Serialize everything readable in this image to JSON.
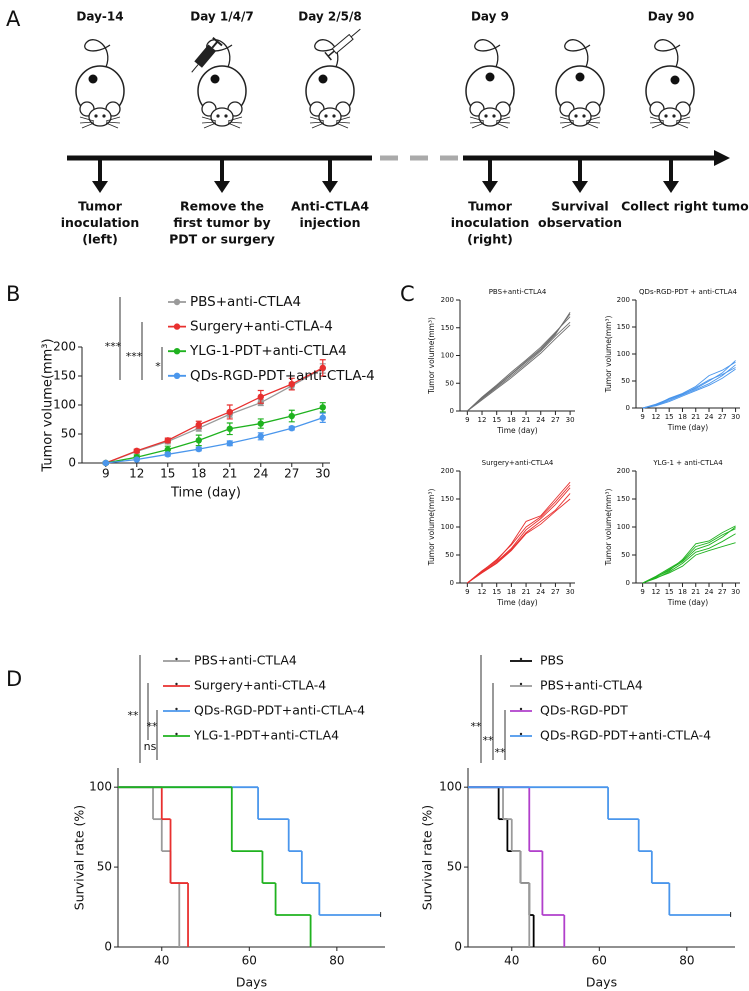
{
  "panel_labels": [
    "A",
    "B",
    "C",
    "D"
  ],
  "timeline": {
    "steps": [
      {
        "day": "Day-14",
        "label": [
          "Tumor",
          "inoculation",
          "(left)"
        ]
      },
      {
        "day": "Day 1/4/7",
        "label": [
          "Remove the",
          "first tumor by",
          "PDT or surgery"
        ]
      },
      {
        "day": "Day 2/5/8",
        "label": [
          "Anti-CTLA4",
          "injection"
        ]
      },
      {
        "day": "Day 9",
        "label": [
          "Tumor",
          "inoculation",
          "(right)"
        ]
      },
      {
        "label": [
          "Survival",
          "observation"
        ]
      },
      {
        "day": "Day 90",
        "label": [
          "Collect right tumor"
        ]
      }
    ]
  },
  "chart_data": [
    {
      "type": "line",
      "x": [
        9,
        12,
        15,
        18,
        21,
        24,
        27,
        30
      ],
      "xlim": [
        6.7,
        30.7
      ],
      "xticks": [
        9,
        12,
        15,
        18,
        21,
        24,
        27,
        30
      ],
      "ylim": [
        0,
        200
      ],
      "yticks": [
        0,
        50,
        100,
        150,
        200
      ],
      "xlabel": "Time (day)",
      "ylabel": "Tumor volume(mm³)",
      "annotations": [
        "***",
        "***",
        "*"
      ],
      "markers": true,
      "series": [
        {
          "name": "PBS+anti-CTLA4",
          "color": "#9a9a9a",
          "values": [
            0,
            20,
            37,
            60,
            84,
            104,
            133,
            163
          ],
          "errors": [
            2,
            3,
            4,
            5,
            5,
            5,
            6,
            8
          ]
        },
        {
          "name": "Surgery+anti-CTLA-4",
          "color": "#e8302f",
          "values": [
            0,
            21,
            39,
            66,
            88,
            114,
            136,
            164
          ],
          "errors": [
            2,
            3,
            4,
            6,
            12,
            11,
            10,
            14
          ]
        },
        {
          "name": "YLG-1-PDT+anti-CTLA4",
          "color": "#1fb21f",
          "values": [
            0,
            10,
            23,
            39,
            59,
            68,
            81,
            96
          ],
          "errors": [
            2,
            4,
            6,
            9,
            10,
            8,
            10,
            8
          ]
        },
        {
          "name": "QDs-RGD-PDT+anti-CTLA-4",
          "color": "#4a96ec",
          "values": [
            0,
            6,
            15,
            24,
            34,
            46,
            60,
            78
          ],
          "errors": [
            2,
            2,
            3,
            3,
            4,
            6,
            3,
            8
          ]
        }
      ]
    },
    {
      "type": "line",
      "title": "PBS+anti-CTLA4",
      "x": [
        9,
        12,
        15,
        18,
        21,
        24,
        27,
        30
      ],
      "xlim": [
        7.5,
        31
      ],
      "xticks": [
        9,
        12,
        15,
        18,
        21,
        24,
        27,
        30
      ],
      "ylim": [
        0,
        200
      ],
      "yticks": [
        0,
        50,
        100,
        150,
        200
      ],
      "xlabel": "Time (day)",
      "ylabel": "Tumor volume(mm³)",
      "series": [
        {
          "color": "#6e6e6e",
          "values": [
            0,
            22,
            42,
            63,
            85,
            108,
            135,
            160
          ]
        },
        {
          "color": "#6e6e6e",
          "values": [
            0,
            25,
            47,
            70,
            92,
            115,
            142,
            170
          ]
        },
        {
          "color": "#6e6e6e",
          "values": [
            0,
            20,
            40,
            60,
            82,
            104,
            130,
            155
          ]
        },
        {
          "color": "#6e6e6e",
          "values": [
            0,
            24,
            45,
            67,
            90,
            112,
            140,
            175
          ]
        },
        {
          "color": "#6e6e6e",
          "values": [
            0,
            23,
            44,
            66,
            88,
            110,
            138,
            178
          ]
        }
      ]
    },
    {
      "type": "line",
      "title": "QDs-RGD-PDT + anti-CTLA4",
      "x": [
        9,
        12,
        15,
        18,
        21,
        24,
        27,
        30
      ],
      "xlim": [
        7.5,
        31
      ],
      "xticks": [
        9,
        12,
        15,
        18,
        21,
        24,
        27,
        30
      ],
      "ylim": [
        0,
        200
      ],
      "yticks": [
        0,
        50,
        100,
        150,
        200
      ],
      "xlabel": "Time (day)",
      "ylabel": "Tumor volume(mm³)",
      "series": [
        {
          "color": "#4a96ec",
          "values": [
            0,
            5,
            14,
            24,
            34,
            45,
            60,
            80
          ]
        },
        {
          "color": "#4a96ec",
          "values": [
            0,
            7,
            17,
            26,
            36,
            50,
            65,
            88
          ]
        },
        {
          "color": "#4a96ec",
          "values": [
            0,
            4,
            12,
            22,
            32,
            42,
            55,
            72
          ]
        },
        {
          "color": "#4a96ec",
          "values": [
            0,
            6,
            16,
            25,
            38,
            52,
            62,
            75
          ]
        },
        {
          "color": "#4a96ec",
          "values": [
            0,
            5,
            18,
            27,
            40,
            60,
            70,
            85
          ]
        }
      ]
    },
    {
      "type": "line",
      "title": "Surgery+anti-CTLA4",
      "x": [
        9,
        12,
        15,
        18,
        21,
        24,
        27,
        30
      ],
      "xlim": [
        7.5,
        31
      ],
      "xticks": [
        9,
        12,
        15,
        18,
        21,
        24,
        27,
        30
      ],
      "ylim": [
        0,
        200
      ],
      "yticks": [
        0,
        50,
        100,
        150,
        200
      ],
      "xlabel": "Time (day)",
      "ylabel": "Tumor volume(mm³)",
      "series": [
        {
          "color": "#e8302f",
          "values": [
            0,
            20,
            38,
            62,
            95,
            115,
            140,
            170
          ]
        },
        {
          "color": "#e8302f",
          "values": [
            0,
            22,
            40,
            70,
            110,
            120,
            150,
            180
          ]
        },
        {
          "color": "#e8302f",
          "values": [
            0,
            18,
            35,
            58,
            88,
            105,
            128,
            150
          ]
        },
        {
          "color": "#e8302f",
          "values": [
            0,
            21,
            42,
            68,
            100,
            118,
            145,
            175
          ]
        },
        {
          "color": "#e8302f",
          "values": [
            0,
            19,
            36,
            60,
            90,
            110,
            130,
            160
          ]
        }
      ]
    },
    {
      "type": "line",
      "title": "YLG-1 + anti-CTLA4",
      "x": [
        9,
        12,
        15,
        18,
        21,
        24,
        27,
        30
      ],
      "xlim": [
        7.5,
        31
      ],
      "xticks": [
        9,
        12,
        15,
        18,
        21,
        24,
        27,
        30
      ],
      "ylim": [
        0,
        200
      ],
      "yticks": [
        0,
        50,
        100,
        150,
        200
      ],
      "xlabel": "Time (day)",
      "ylabel": "Tumor volume(mm³)",
      "series": [
        {
          "color": "#1fb21f",
          "values": [
            0,
            10,
            24,
            38,
            60,
            68,
            82,
            100
          ]
        },
        {
          "color": "#1fb21f",
          "values": [
            0,
            12,
            26,
            40,
            65,
            72,
            86,
            97
          ]
        },
        {
          "color": "#1fb21f",
          "values": [
            0,
            8,
            20,
            35,
            55,
            62,
            74,
            88
          ]
        },
        {
          "color": "#1fb21f",
          "values": [
            0,
            11,
            22,
            42,
            70,
            75,
            90,
            102
          ]
        },
        {
          "color": "#1fb21f",
          "values": [
            0,
            9,
            18,
            30,
            50,
            58,
            65,
            72
          ]
        }
      ]
    },
    {
      "type": "step",
      "xlim": [
        30,
        91
      ],
      "xticks": [
        40,
        60,
        80
      ],
      "ylim": [
        0,
        112
      ],
      "yticks": [
        0,
        50,
        100
      ],
      "xlabel": "Days",
      "ylabel": "Survival rate (%)",
      "annotations": [
        "**",
        "**",
        "ns"
      ],
      "series": [
        {
          "name": "PBS+anti-CTLA4",
          "color": "#9a9a9a",
          "x": [
            30,
            38,
            40,
            42,
            44
          ],
          "values": [
            100,
            80,
            60,
            40,
            0
          ]
        },
        {
          "name": "Surgery+anti-CTLA-4",
          "color": "#e8302f",
          "x": [
            30,
            40,
            42,
            46
          ],
          "values": [
            100,
            80,
            40,
            0
          ]
        },
        {
          "name": "QDs-RGD-PDT+anti-CTLA-4",
          "color": "#4a96ec",
          "x": [
            30,
            62,
            69,
            72,
            76,
            90
          ],
          "values": [
            100,
            80,
            60,
            40,
            20,
            20
          ]
        },
        {
          "name": "YLG-1-PDT+anti-CTLA4",
          "color": "#1fb21f",
          "x": [
            30,
            56,
            63,
            66,
            74
          ],
          "values": [
            100,
            60,
            40,
            20,
            0
          ]
        }
      ]
    },
    {
      "type": "step",
      "xlim": [
        30,
        91
      ],
      "xticks": [
        40,
        60,
        80
      ],
      "ylim": [
        0,
        112
      ],
      "yticks": [
        0,
        50,
        100
      ],
      "xlabel": "Days",
      "ylabel": "Survival rate (%)",
      "annotations": [
        "**",
        "**",
        "**"
      ],
      "series": [
        {
          "name": "PBS",
          "color": "#000000",
          "x": [
            30,
            37,
            39,
            42,
            44,
            45
          ],
          "values": [
            100,
            80,
            60,
            40,
            20,
            0
          ]
        },
        {
          "name": "PBS+anti-CTLA4",
          "color": "#9a9a9a",
          "x": [
            30,
            38,
            40,
            42,
            44
          ],
          "values": [
            100,
            80,
            60,
            40,
            0
          ]
        },
        {
          "name": "QDs-RGD-PDT",
          "color": "#b13fcb",
          "x": [
            30,
            44,
            47,
            52
          ],
          "values": [
            100,
            60,
            20,
            0
          ]
        },
        {
          "name": "QDs-RGD-PDT+anti-CTLA-4",
          "color": "#4a96ec",
          "x": [
            30,
            62,
            69,
            72,
            76,
            90
          ],
          "values": [
            100,
            80,
            60,
            40,
            20,
            20
          ]
        }
      ]
    }
  ]
}
